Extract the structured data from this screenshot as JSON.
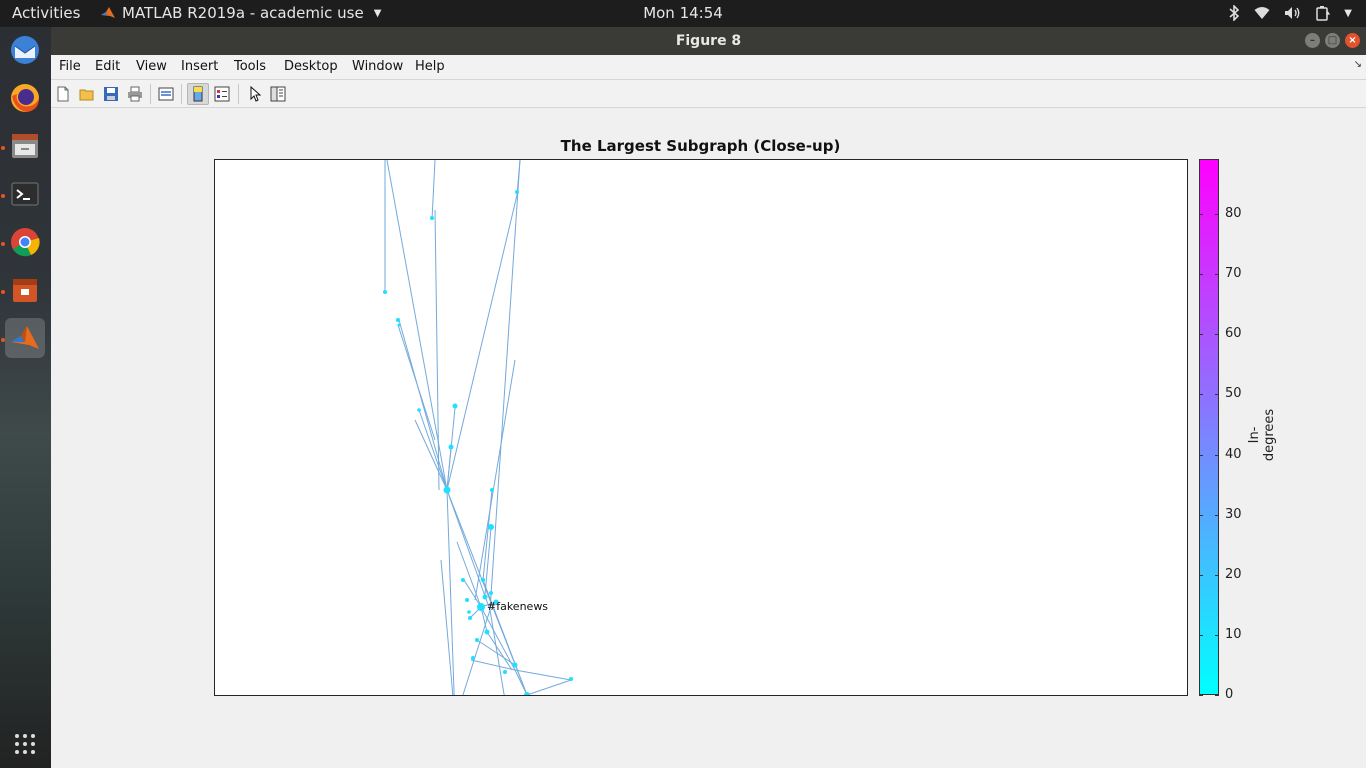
{
  "topbar": {
    "activities": "Activities",
    "app_menu": "MATLAB R2019a - academic use",
    "clock": "Mon 14:54"
  },
  "window": {
    "title": "Figure 8"
  },
  "menubar": {
    "items": [
      "File",
      "Edit",
      "View",
      "Insert",
      "Tools",
      "Desktop",
      "Window",
      "Help"
    ]
  },
  "toolbar": {
    "buttons": [
      "new-figure-icon",
      "open-file-icon",
      "save-icon",
      "print-icon",
      "link-plot-icon",
      "insert-colorbar-icon",
      "insert-legend-icon",
      "edit-plot-icon",
      "plot-browser-icon"
    ],
    "pressed": "insert-colorbar-icon"
  },
  "dock": {
    "apps": [
      "thunderbird-icon",
      "firefox-icon",
      "files-icon",
      "terminal-icon",
      "chrome-icon",
      "archive-icon",
      "matlab-icon"
    ],
    "show_apps": "show-applications-icon"
  },
  "chart_data": {
    "type": "network-graph",
    "title": "The Largest Subgraph (Close-up)",
    "node_label": "#fakenews",
    "colorbar": {
      "label": "In-degrees",
      "min": 0,
      "max": 89,
      "ticks": [
        0,
        10,
        20,
        30,
        40,
        50,
        60,
        70,
        80
      ],
      "colors": [
        "#00ffff",
        "#ff00ff"
      ]
    },
    "edge_color": "#5b9bd5",
    "node_color": "#00e5ff"
  }
}
